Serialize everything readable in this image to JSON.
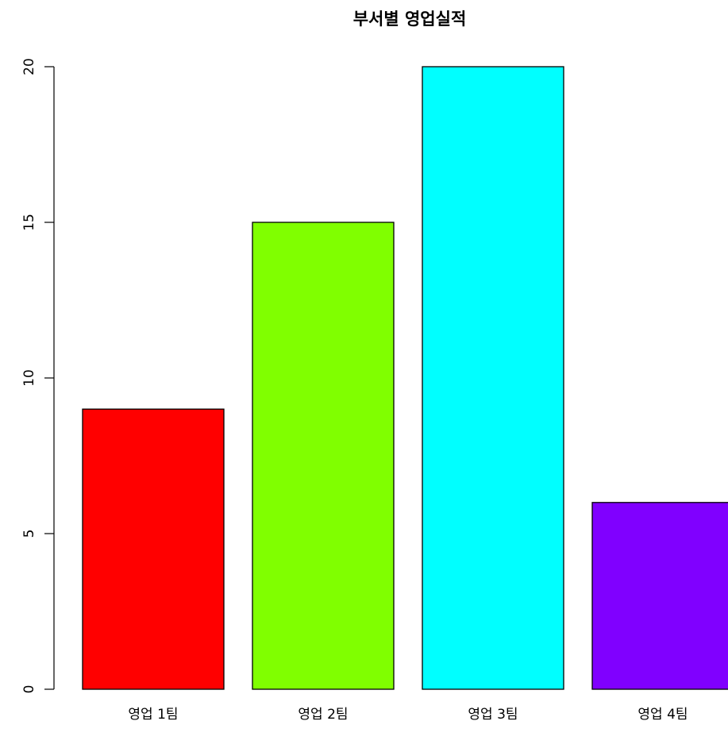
{
  "chart_data": {
    "type": "bar",
    "title": "부서별 영업실적",
    "xlabel": "",
    "ylabel": "",
    "categories": [
      "영업 1팀",
      "영업 2팀",
      "영업 3팀",
      "영업 4팀"
    ],
    "values": [
      9,
      15,
      20,
      6
    ],
    "colors": [
      "#ff0000",
      "#80ff00",
      "#00ffff",
      "#8000ff"
    ],
    "ylim": [
      0,
      20
    ],
    "yticks": [
      0,
      5,
      10,
      15,
      20
    ],
    "grid": false,
    "legend": "none"
  }
}
